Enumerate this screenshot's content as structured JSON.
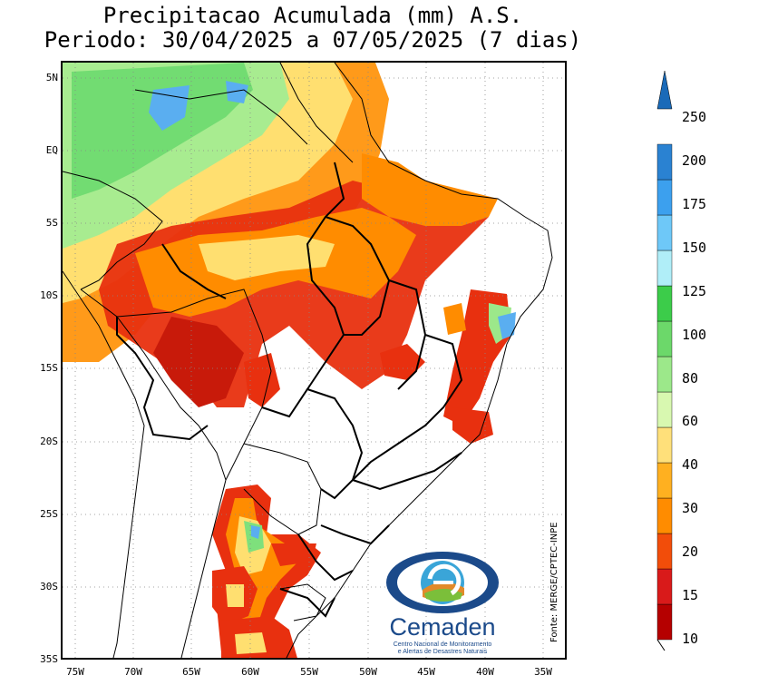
{
  "title_line1": "Precipitacao Acumulada (mm) A.S.",
  "title_line2": "Periodo: 30/04/2025 a 07/05/2025 (7 dias)",
  "lat_labels": [
    "5N",
    "EQ",
    "5S",
    "10S",
    "15S",
    "20S",
    "25S",
    "30S",
    "35S"
  ],
  "lon_labels": [
    "75W",
    "70W",
    "65W",
    "60W",
    "55W",
    "50W",
    "45W",
    "40W",
    "35W"
  ],
  "source": "Fonte: MERGE/CPTEC-INPE",
  "logo": {
    "name": "Cemaden",
    "subtitle_line1": "Centro Nacional de Monitoramento",
    "subtitle_line2": "e Alertas de Desastres Naturais"
  },
  "colorbar": {
    "levels": [
      "10",
      "15",
      "20",
      "30",
      "40",
      "60",
      "80",
      "100",
      "125",
      "150",
      "175",
      "200",
      "250"
    ],
    "colors": [
      "#b50000",
      "#d91a1a",
      "#f24d0a",
      "#ff8c00",
      "#ffb020",
      "#ffe07a",
      "#d8f8b0",
      "#9ce88a",
      "#6cd86a",
      "#3ccc4a",
      "#b0eef8",
      "#6ec8f8",
      "#3ca0ee",
      "#2a82d2",
      "#1a6ab8"
    ]
  },
  "colors": {
    "very_low": "#b50000",
    "low": "#e0200f",
    "orange": "#ff8c00",
    "yellow": "#ffdf70",
    "light_green": "#c8f0a0",
    "green": "#7ee07c",
    "blue": "#3ca0ee"
  }
}
